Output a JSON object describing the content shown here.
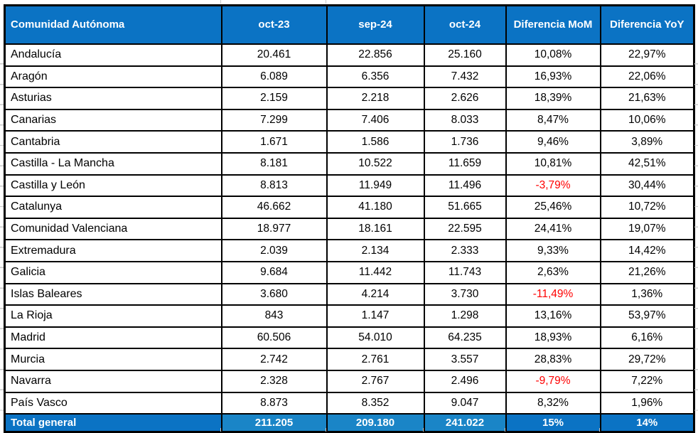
{
  "colors": {
    "header_bg": "#0b73c4",
    "total_value_bg": "#1a85c7",
    "negative": "#ff0000",
    "border": "#000000",
    "header_text": "#ffffff",
    "body_text": "#000000"
  },
  "chart_data": {
    "type": "table",
    "title": "",
    "columns": [
      "Comunidad Autónoma",
      "oct-23",
      "sep-24",
      "oct-24",
      "Diferencia MoM",
      "Diferencia YoY"
    ],
    "rows": [
      [
        "Andalucía",
        "20.461",
        "22.856",
        "25.160",
        "10,08%",
        "22,97%"
      ],
      [
        "Aragón",
        "6.089",
        "6.356",
        "7.432",
        "16,93%",
        "22,06%"
      ],
      [
        "Asturias",
        "2.159",
        "2.218",
        "2.626",
        "18,39%",
        "21,63%"
      ],
      [
        "Canarias",
        "7.299",
        "7.406",
        "8.033",
        "8,47%",
        "10,06%"
      ],
      [
        "Cantabria",
        "1.671",
        "1.586",
        "1.736",
        "9,46%",
        "3,89%"
      ],
      [
        "Castilla - La Mancha",
        "8.181",
        "10.522",
        "11.659",
        "10,81%",
        "42,51%"
      ],
      [
        "Castilla y León",
        "8.813",
        "11.949",
        "11.496",
        "-3,79%",
        "30,44%"
      ],
      [
        "Catalunya",
        "46.662",
        "41.180",
        "51.665",
        "25,46%",
        "10,72%"
      ],
      [
        "Comunidad Valenciana",
        "18.977",
        "18.161",
        "22.595",
        "24,41%",
        "19,07%"
      ],
      [
        "Extremadura",
        "2.039",
        "2.134",
        "2.333",
        "9,33%",
        "14,42%"
      ],
      [
        "Galicia",
        "9.684",
        "11.442",
        "11.743",
        "2,63%",
        "21,26%"
      ],
      [
        "Islas Baleares",
        "3.680",
        "4.214",
        "3.730",
        "-11,49%",
        "1,36%"
      ],
      [
        "La Rioja",
        "843",
        "1.147",
        "1.298",
        "13,16%",
        "53,97%"
      ],
      [
        "Madrid",
        "60.506",
        "54.010",
        "64.235",
        "18,93%",
        "6,16%"
      ],
      [
        "Murcia",
        "2.742",
        "2.761",
        "3.557",
        "28,83%",
        "29,72%"
      ],
      [
        "Navarra",
        "2.328",
        "2.767",
        "2.496",
        "-9,79%",
        "7,22%"
      ],
      [
        "País Vasco",
        "8.873",
        "8.352",
        "9.047",
        "8,32%",
        "1,96%"
      ]
    ],
    "total_row": [
      "Total general",
      "211.205",
      "209.180",
      "241.022",
      "15%",
      "14%"
    ]
  }
}
